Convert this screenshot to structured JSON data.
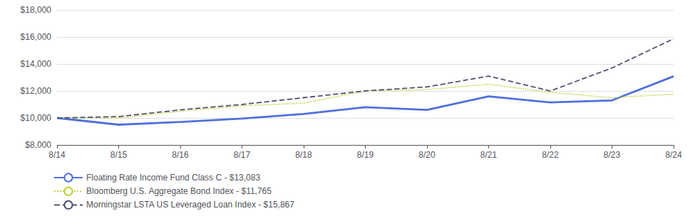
{
  "chart_data": {
    "type": "line",
    "categories": [
      "8/14",
      "8/15",
      "8/16",
      "8/17",
      "8/18",
      "8/19",
      "8/20",
      "8/21",
      "8/22",
      "8/23",
      "8/24"
    ],
    "series": [
      {
        "name": "Floating Rate Income Fund Class C - $13,083",
        "line_style": "solid",
        "values": [
          10000,
          9500,
          9700,
          9950,
          10300,
          10800,
          10600,
          11600,
          11150,
          11300,
          13083
        ]
      },
      {
        "name": "Bloomberg U.S. Aggregate Bond Index - $11,765",
        "line_style": "dotted",
        "values": [
          10000,
          10000,
          10500,
          10900,
          11100,
          12000,
          12100,
          12500,
          11900,
          11500,
          11765
        ]
      },
      {
        "name": "Morningstar LSTA US Leveraged Loan Index - $15,867",
        "line_style": "dashed",
        "values": [
          10000,
          10100,
          10600,
          11000,
          11500,
          12000,
          12300,
          13100,
          12000,
          13700,
          15867
        ]
      }
    ],
    "ylim": [
      8000,
      18000
    ],
    "yticks": [
      {
        "value": 8000,
        "label": "$8,000"
      },
      {
        "value": 10000,
        "label": "$10,000"
      },
      {
        "value": 12000,
        "label": "$12,000"
      },
      {
        "value": 14000,
        "label": "$14,000"
      },
      {
        "value": 16000,
        "label": "$16,000"
      },
      {
        "value": 18000,
        "label": "$18,000"
      }
    ],
    "grid": true,
    "legend": "lower left"
  }
}
